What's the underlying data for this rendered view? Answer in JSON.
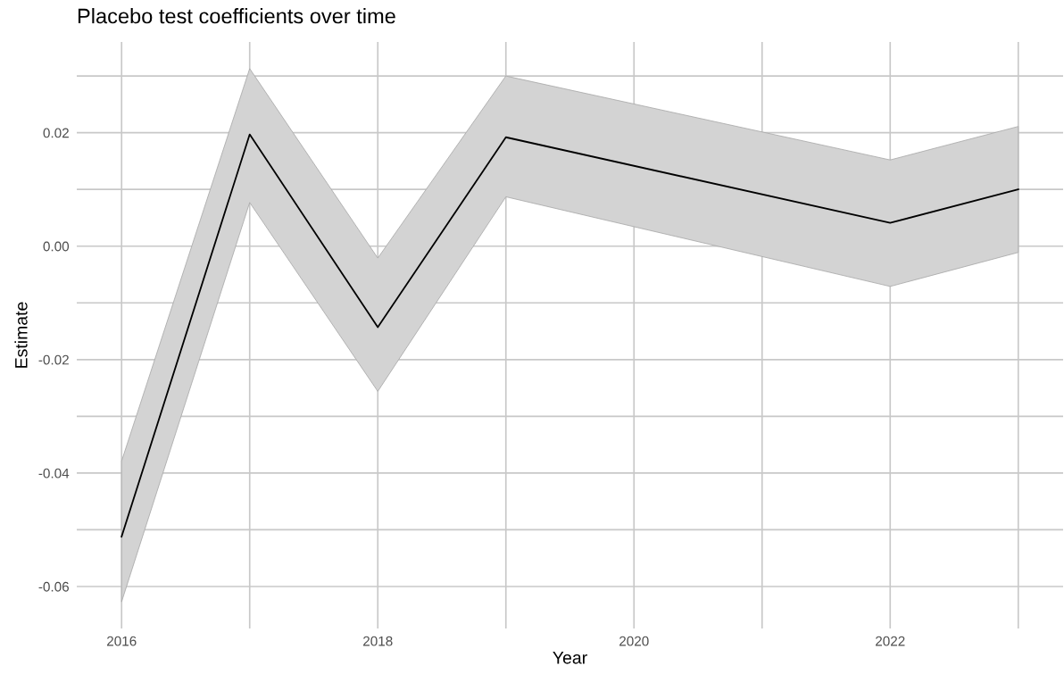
{
  "chart_data": {
    "type": "line",
    "title": "Placebo test coefficients over time",
    "xlabel": "Year",
    "ylabel": "Estimate",
    "x": [
      2016,
      2017,
      2018,
      2019,
      2022,
      2023
    ],
    "series": [
      {
        "color": "#000000",
        "values": [
          -0.0512,
          0.0197,
          -0.0143,
          0.0192,
          0.0041,
          0.01
        ],
        "lower": [
          -0.0627,
          0.0077,
          -0.0256,
          0.0087,
          -0.0071,
          -0.0011
        ],
        "upper": [
          -0.0379,
          0.0313,
          -0.0021,
          0.03,
          0.0152,
          0.0211
        ]
      }
    ],
    "xlim": [
      2015.65,
      2023.35
    ],
    "ylim": [
      -0.0674,
      0.036
    ],
    "xticks": [
      2016,
      {
        "value": 2017,
        "label": null
      },
      2018,
      {
        "value": 2019,
        "label": null
      },
      2020,
      {
        "value": 2021,
        "label": null
      },
      2022,
      {
        "value": 2023,
        "label": null
      }
    ],
    "yticks": [
      {
        "value": -0.06,
        "label": "-0.06"
      },
      {
        "value": -0.05,
        "label": null
      },
      {
        "value": -0.04,
        "label": "-0.04"
      },
      {
        "value": -0.03,
        "label": null
      },
      {
        "value": -0.02,
        "label": "-0.02"
      },
      {
        "value": -0.01,
        "label": null
      },
      {
        "value": 0.0,
        "label": "0.00"
      },
      {
        "value": 0.01,
        "label": null
      },
      {
        "value": 0.02,
        "label": "0.02"
      },
      {
        "value": 0.03,
        "label": null
      }
    ],
    "grid": true,
    "line_style": "solid"
  }
}
